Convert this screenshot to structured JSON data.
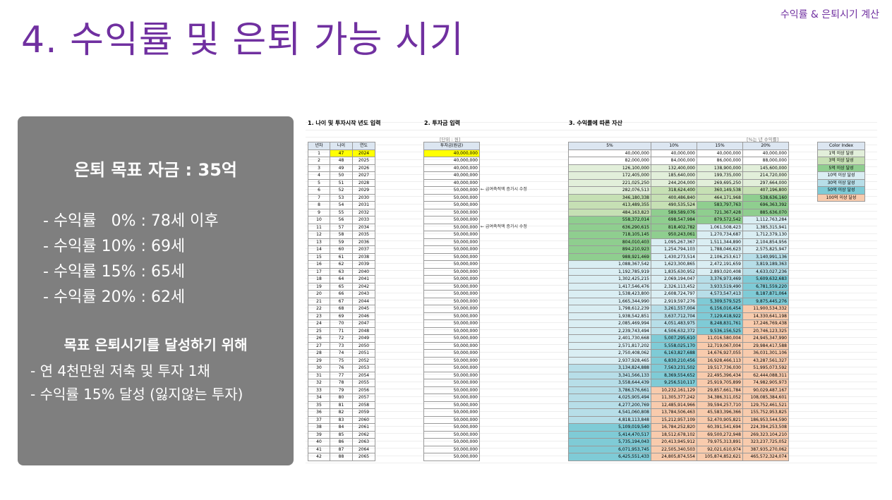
{
  "header": {
    "top_tag": "수익률 & 은퇴시기 계산",
    "title": "4. 수익률 및 은퇴 가능 시기"
  },
  "panel": {
    "goal": "은퇴 목표 자금 : 35억",
    "rates": [
      "- 수익률   0% : 78세 이후",
      "- 수익률 10% : 69세",
      "- 수익률 15% : 65세",
      "- 수익률 20% : 62세"
    ],
    "subtitle": "목표 은퇴시기를 달성하기 위해",
    "actions": [
      "- 연 4천만원 저축 및 투자 1채",
      "- 수익률 15% 달성 (잃지않는 투자)"
    ]
  },
  "sheet": {
    "section1": "1. 나이 및 투자시작 년도 입력",
    "section2": "2. 투자금 입력",
    "section3": "3. 수익률에 따른 자산",
    "unit_note": "[단위 : 원]",
    "rate_note": "[%는 년 수익률]",
    "age_headers": [
      "년차",
      "나이",
      "연도"
    ],
    "inv_header": "투자금(원금)",
    "rate_headers": [
      "5%",
      "10%",
      "15%",
      "20%"
    ],
    "annotation": "← 급여축적액 증가시 수정",
    "legend_title": "Color Index",
    "legend": [
      {
        "label": "1억 이상 달성",
        "color": "#e2efda"
      },
      {
        "label": "3억 이상 달성",
        "color": "#c6e0b4"
      },
      {
        "label": "5억 이상 달성",
        "color": "#8fce8f"
      },
      {
        "label": "10억 이상 달성",
        "color": "#daeef3"
      },
      {
        "label": "30억 이상 달성",
        "color": "#b7dee8"
      },
      {
        "label": "50억 이상 달성",
        "color": "#7fcbd6"
      },
      {
        "label": "100억 이상 달성",
        "color": "#f8cbad"
      }
    ],
    "rows": [
      [
        "1",
        "47",
        "2024",
        "40,000,000",
        "40,000,000",
        "40,000,000",
        "40,000,000",
        "40,000,000"
      ],
      [
        "2",
        "48",
        "2025",
        "40,000,000",
        "82,000,000",
        "84,000,000",
        "86,000,000",
        "88,000,000"
      ],
      [
        "3",
        "49",
        "2026",
        "40,000,000",
        "126,100,000",
        "132,400,000",
        "138,900,000",
        "145,600,000"
      ],
      [
        "4",
        "50",
        "2027",
        "40,000,000",
        "172,405,000",
        "185,640,000",
        "199,735,000",
        "214,720,000"
      ],
      [
        "5",
        "51",
        "2028",
        "40,000,000",
        "221,025,250",
        "244,204,000",
        "269,695,250",
        "297,664,000"
      ],
      [
        "6",
        "52",
        "2029",
        "50,000,000",
        "282,076,513",
        "318,624,400",
        "360,149,538",
        "407,196,800"
      ],
      [
        "7",
        "53",
        "2030",
        "50,000,000",
        "346,180,338",
        "400,486,840",
        "464,171,968",
        "538,636,160"
      ],
      [
        "8",
        "54",
        "2031",
        "50,000,000",
        "413,489,355",
        "490,535,524",
        "583,797,763",
        "696,363,392"
      ],
      [
        "9",
        "55",
        "2032",
        "50,000,000",
        "484,163,823",
        "589,589,076",
        "721,367,428",
        "885,636,070"
      ],
      [
        "10",
        "56",
        "2033",
        "50,000,000",
        "558,372,014",
        "698,547,984",
        "879,572,542",
        "1,112,763,284"
      ],
      [
        "11",
        "57",
        "2034",
        "50,000,000",
        "636,290,615",
        "818,402,782",
        "1,061,508,423",
        "1,385,315,941"
      ],
      [
        "12",
        "58",
        "2035",
        "50,000,000",
        "718,105,145",
        "950,243,061",
        "1,270,734,687",
        "1,712,379,130"
      ],
      [
        "13",
        "59",
        "2036",
        "50,000,000",
        "804,010,403",
        "1,095,267,367",
        "1,511,344,890",
        "2,104,854,956"
      ],
      [
        "14",
        "60",
        "2037",
        "50,000,000",
        "894,210,923",
        "1,254,794,103",
        "1,788,046,623",
        "2,575,825,947"
      ],
      [
        "15",
        "61",
        "2038",
        "50,000,000",
        "988,921,469",
        "1,430,273,514",
        "2,106,253,617",
        "3,140,991,136"
      ],
      [
        "16",
        "62",
        "2039",
        "50,000,000",
        "1,088,367,542",
        "1,623,300,865",
        "2,472,191,659",
        "3,819,189,363"
      ],
      [
        "17",
        "63",
        "2040",
        "50,000,000",
        "1,192,785,919",
        "1,835,630,952",
        "2,893,020,408",
        "4,633,027,236"
      ],
      [
        "18",
        "64",
        "2041",
        "50,000,000",
        "1,302,425,215",
        "2,069,194,047",
        "3,376,973,469",
        "5,609,632,683"
      ],
      [
        "19",
        "65",
        "2042",
        "50,000,000",
        "1,417,546,476",
        "2,326,113,452",
        "3,933,519,490",
        "6,781,559,220"
      ],
      [
        "20",
        "66",
        "2043",
        "50,000,000",
        "1,538,423,800",
        "2,608,724,797",
        "4,573,547,413",
        "8,187,871,064"
      ],
      [
        "21",
        "67",
        "2044",
        "50,000,000",
        "1,665,344,990",
        "2,919,597,276",
        "5,309,579,525",
        "9,875,445,276"
      ],
      [
        "22",
        "68",
        "2045",
        "50,000,000",
        "1,798,612,239",
        "3,261,557,004",
        "6,156,016,454",
        "11,900,534,332"
      ],
      [
        "23",
        "69",
        "2046",
        "50,000,000",
        "1,938,542,851",
        "3,637,712,704",
        "7,129,418,922",
        "14,330,641,198"
      ],
      [
        "24",
        "70",
        "2047",
        "50,000,000",
        "2,085,469,994",
        "4,051,483,975",
        "8,248,831,761",
        "17,246,769,438"
      ],
      [
        "25",
        "71",
        "2048",
        "50,000,000",
        "2,239,743,494",
        "4,506,632,372",
        "9,536,156,525",
        "20,746,123,325"
      ],
      [
        "26",
        "72",
        "2049",
        "50,000,000",
        "2,401,730,668",
        "5,007,295,610",
        "11,016,580,004",
        "24,945,347,990"
      ],
      [
        "27",
        "73",
        "2050",
        "50,000,000",
        "2,571,817,202",
        "5,558,025,170",
        "12,719,067,004",
        "29,984,417,588"
      ],
      [
        "28",
        "74",
        "2051",
        "50,000,000",
        "2,750,408,062",
        "6,163,827,688",
        "14,676,927,055",
        "36,031,301,106"
      ],
      [
        "29",
        "75",
        "2052",
        "50,000,000",
        "2,937,928,465",
        "6,830,210,456",
        "16,928,466,113",
        "43,287,561,327"
      ],
      [
        "30",
        "76",
        "2053",
        "50,000,000",
        "3,134,824,888",
        "7,563,231,502",
        "19,517,736,030",
        "51,995,073,592"
      ],
      [
        "31",
        "77",
        "2054",
        "50,000,000",
        "3,341,566,133",
        "8,369,554,652",
        "22,495,396,434",
        "62,444,088,311"
      ],
      [
        "32",
        "78",
        "2055",
        "50,000,000",
        "3,558,644,439",
        "9,256,510,117",
        "25,919,705,899",
        "74,982,905,973"
      ],
      [
        "33",
        "79",
        "2056",
        "50,000,000",
        "3,786,576,661",
        "10,232,161,129",
        "29,857,661,784",
        "90,029,487,167"
      ],
      [
        "34",
        "80",
        "2057",
        "50,000,000",
        "4,025,905,494",
        "11,305,377,242",
        "34,386,311,052",
        "108,085,384,601"
      ],
      [
        "35",
        "81",
        "2058",
        "50,000,000",
        "4,277,200,769",
        "12,485,914,966",
        "39,594,257,710",
        "129,752,461,521"
      ],
      [
        "36",
        "82",
        "2059",
        "50,000,000",
        "4,541,060,808",
        "13,784,506,463",
        "45,583,396,366",
        "155,752,953,825"
      ],
      [
        "37",
        "83",
        "2060",
        "50,000,000",
        "4,818,113,848",
        "15,212,957,109",
        "52,470,905,821",
        "186,953,544,590"
      ],
      [
        "38",
        "84",
        "2061",
        "50,000,000",
        "5,109,019,540",
        "16,784,252,820",
        "60,391,541,694",
        "224,394,253,508"
      ],
      [
        "39",
        "85",
        "2062",
        "50,000,000",
        "5,414,470,517",
        "18,512,678,102",
        "69,500,272,948",
        "269,323,104,210"
      ],
      [
        "40",
        "86",
        "2063",
        "50,000,000",
        "5,735,194,043",
        "20,413,945,912",
        "79,975,313,891",
        "323,237,725,052"
      ],
      [
        "41",
        "87",
        "2064",
        "50,000,000",
        "6,071,953,745",
        "22,505,340,503",
        "92,021,610,974",
        "387,935,270,062"
      ],
      [
        "42",
        "88",
        "2065",
        "50,000,000",
        "6,425,551,433",
        "24,805,874,554",
        "105,874,852,621",
        "465,572,324,074"
      ]
    ]
  }
}
